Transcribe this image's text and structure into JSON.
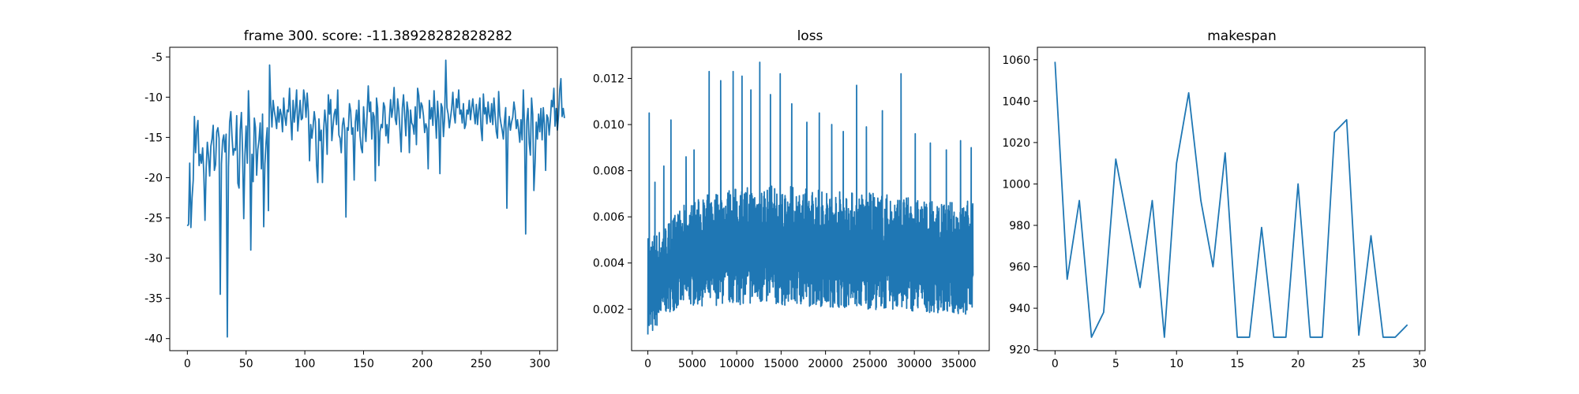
{
  "figure": {
    "background": "#ffffff",
    "line_color": "#1f77b4",
    "axes_color": "#000000"
  },
  "chart_data": [
    {
      "type": "line",
      "title": "frame 300. score: -11.38928282828282",
      "xlabel": "",
      "ylabel": "",
      "xlim": [
        -15,
        315
      ],
      "ylim": [
        -41.5,
        -3.8
      ],
      "xticks": [
        0,
        50,
        100,
        150,
        200,
        250,
        300
      ],
      "yticks": [
        -40,
        -35,
        -30,
        -25,
        -20,
        -15,
        -10,
        -5
      ],
      "grid": false,
      "series": [
        {
          "x_start": 0,
          "x_step": 1,
          "values": [
            -26,
            -25.8,
            -18.2,
            -26.2,
            -22.5,
            -20.3,
            -12.4,
            -16.9,
            -14.1,
            -12.9,
            -18.5,
            -17.1,
            -18.2,
            -16.3,
            -19.4,
            -25.3,
            -18.9,
            -15.6,
            -17.3,
            -19.8,
            -16.1,
            -15.2,
            -13.5,
            -19.1,
            -18.4,
            -14.3,
            -13.8,
            -15.1,
            -34.5,
            -18.3,
            -15.4,
            -14.7,
            -16.8,
            -14.6,
            -39.8,
            -18.7,
            -13.1,
            -11.8,
            -14.9,
            -17.2,
            -16.4,
            -16.6,
            -12.3,
            -20.7,
            -21.3,
            -14.1,
            -11.9,
            -16.8,
            -25.1,
            -17.3,
            -13.6,
            -18.2,
            -9.2,
            -13.8,
            -29,
            -17.1,
            -20.5,
            -12.6,
            -13.8,
            -19.7,
            -16.5,
            -15.3,
            -13.2,
            -18.9,
            -12.1,
            -26.1,
            -18.3,
            -15.6,
            -13.8,
            -24.1,
            -6,
            -10.9,
            -13.7,
            -10.4,
            -11.7,
            -12.6,
            -13.9,
            -11.2,
            -13.1,
            -11.5,
            -12.2,
            -14.3,
            -10.1,
            -12.4,
            -13.5,
            -11.6,
            -11.8,
            -8.9,
            -12.7,
            -15.3,
            -10.4,
            -13.1,
            -11.5,
            -9.1,
            -14.2,
            -12.3,
            -10.4,
            -12.8,
            -12.6,
            -9.1,
            -10.2,
            -12.5,
            -9.5,
            -11.8,
            -17.9,
            -13.4,
            -15.1,
            -13.7,
            -11.8,
            -13.1,
            -18.4,
            -20.6,
            -12.7,
            -15.4,
            -14.1,
            -20.6,
            -14.2,
            -11.6,
            -13.3,
            -17.1,
            -9.7,
            -12.1,
            -10.3,
            -15.4,
            -13.6,
            -12.1,
            -11.5,
            -13.4,
            -9.1,
            -14.7,
            -15.1,
            -16.9,
            -13.5,
            -12.6,
            -14.1,
            -24.9,
            -13.8,
            -14.1,
            -10.8,
            -11.7,
            -14.6,
            -13.8,
            -20.3,
            -13.1,
            -11.6,
            -14.2,
            -10.4,
            -14.8,
            -16.3,
            -16.9,
            -11.2,
            -13.6,
            -15.5,
            -12.1,
            -8.6,
            -11.8,
            -10.6,
            -15.2,
            -11.9,
            -12.4,
            -20.4,
            -10.1,
            -11.4,
            -18.5,
            -14.3,
            -13.4,
            -13.8,
            -10.7,
            -11.2,
            -14.8,
            -13.4,
            -15.7,
            -12.6,
            -10.3,
            -12.5,
            -11.3,
            -8.8,
            -12.7,
            -13.4,
            -10.2,
            -11.6,
            -14.1,
            -16.8,
            -11.4,
            -9.7,
            -12.2,
            -14.8,
            -10.6,
            -11.8,
            -16.9,
            -11.6,
            -13.2,
            -13.5,
            -14.6,
            -11.2,
            -15.9,
            -8.9,
            -9.8,
            -12.6,
            -10.7,
            -11.1,
            -12.3,
            -14.4,
            -13.3,
            -13.9,
            -18.9,
            -10.4,
            -12.7,
            -11.3,
            -13.5,
            -9.2,
            -12.2,
            -15.1,
            -10.5,
            -12.8,
            -19.5,
            -10.8,
            -11.3,
            -14.9,
            -12.6,
            -5.4,
            -11.3,
            -12.1,
            -13.8,
            -12.6,
            -11.4,
            -9.4,
            -12.1,
            -13.2,
            -10.2,
            -11.3,
            -9.1,
            -12.1,
            -11.6,
            -13.2,
            -10.8,
            -13.9,
            -13.4,
            -11.6,
            -12.1,
            -10.4,
            -12.8,
            -11.4,
            -10.2,
            -11.9,
            -13.3,
            -10.9,
            -13.4,
            -11.6,
            -10.1,
            -13.9,
            -15.4,
            -9.6,
            -12.1,
            -11.3,
            -13.3,
            -10.6,
            -12.2,
            -13.1,
            -10.8,
            -13.4,
            -10.1,
            -12.2,
            -14.3,
            -15.1,
            -9.3,
            -12.3,
            -13.3,
            -14.1,
            -15.2,
            -12.9,
            -11.3,
            -23.8,
            -13.9,
            -12.4,
            -14.1,
            -13.1,
            -12.5,
            -10.6,
            -11.7,
            -13.9,
            -12.8,
            -14.1,
            -15.6,
            -12.8,
            -15.3,
            -9.1,
            -13.6,
            -27,
            -12.9,
            -11.4,
            -15.7,
            -17.2,
            -10.1,
            -12.1,
            -21.6,
            -18.2,
            -13.1,
            -15.2,
            -12.1,
            -14.3,
            -11.4,
            -15.3,
            -11.3,
            -13.4,
            -19.1,
            -12.2,
            -12.6,
            -14.7,
            -12.8,
            -10.4,
            -11.2,
            -8.9,
            -13.6,
            -11.4,
            -14.1,
            -12.2,
            -9.1,
            -7.7,
            -12.4,
            -11.4,
            -12.6
          ]
        }
      ]
    },
    {
      "type": "line",
      "title": "loss",
      "xlabel": "",
      "ylabel": "",
      "xlim": [
        -1830,
        38430
      ],
      "ylim": [
        0.0002,
        0.01335
      ],
      "xticks": [
        0,
        5000,
        10000,
        15000,
        20000,
        25000,
        30000,
        35000
      ],
      "yticks": [
        0.002,
        0.004,
        0.006,
        0.008,
        0.01,
        0.012
      ],
      "ytick_labels": [
        "0.002",
        "0.004",
        "0.006",
        "0.008",
        "0.010",
        "0.012"
      ],
      "grid": false,
      "series": [
        {
          "x_start": 0,
          "x_end": 36600,
          "points_estimated": 1500,
          "envelope_low": [
            [
              0,
              0.0009
            ],
            [
              250,
              0.0007
            ],
            [
              1000,
              0.0012
            ],
            [
              2000,
              0.0018
            ],
            [
              4000,
              0.0021
            ],
            [
              10000,
              0.0022
            ],
            [
              20000,
              0.0021
            ],
            [
              30000,
              0.0019
            ],
            [
              36600,
              0.0017
            ]
          ],
          "envelope_high": [
            [
              0,
              0.0052
            ],
            [
              1500,
              0.0055
            ],
            [
              4000,
              0.0065
            ],
            [
              8000,
              0.0072
            ],
            [
              13000,
              0.0074
            ],
            [
              20000,
              0.0072
            ],
            [
              27000,
              0.007
            ],
            [
              33000,
              0.0066
            ],
            [
              36600,
              0.0068
            ]
          ],
          "spikes": [
            [
              150,
              0.0105
            ],
            [
              800,
              0.0075
            ],
            [
              1800,
              0.0082
            ],
            [
              2600,
              0.0102
            ],
            [
              4300,
              0.0086
            ],
            [
              5200,
              0.0089
            ],
            [
              6900,
              0.0123
            ],
            [
              8200,
              0.0119
            ],
            [
              9600,
              0.0123
            ],
            [
              10600,
              0.0121
            ],
            [
              11600,
              0.0115
            ],
            [
              12600,
              0.0127
            ],
            [
              13800,
              0.0113
            ],
            [
              14900,
              0.0122
            ],
            [
              16200,
              0.0109
            ],
            [
              17900,
              0.0101
            ],
            [
              19300,
              0.0105
            ],
            [
              20700,
              0.01
            ],
            [
              22000,
              0.0097
            ],
            [
              23500,
              0.0117
            ],
            [
              24600,
              0.0099
            ],
            [
              26400,
              0.0106
            ],
            [
              28500,
              0.0122
            ],
            [
              30100,
              0.0096
            ],
            [
              31800,
              0.0092
            ],
            [
              33600,
              0.0089
            ],
            [
              35200,
              0.0093
            ],
            [
              36400,
              0.009
            ]
          ]
        }
      ]
    },
    {
      "type": "line",
      "title": "makespan",
      "xlabel": "",
      "ylabel": "",
      "xlim": [
        -1.45,
        30.45
      ],
      "ylim": [
        919.5,
        1066
      ],
      "xticks": [
        0,
        5,
        10,
        15,
        20,
        25,
        30
      ],
      "yticks": [
        920,
        940,
        960,
        980,
        1000,
        1020,
        1040,
        1060
      ],
      "grid": false,
      "series": [
        {
          "x": [
            0,
            1,
            2,
            3,
            4,
            5,
            6,
            7,
            8,
            9,
            10,
            11,
            12,
            13,
            14,
            15,
            16,
            17,
            18,
            19,
            20,
            21,
            22,
            23,
            24,
            25,
            26,
            27,
            28,
            29
          ],
          "values": [
            1059,
            954,
            992,
            926,
            938,
            1012,
            981,
            950,
            992,
            926,
            1010,
            1044,
            992,
            960,
            1015,
            926,
            926,
            979,
            926,
            926,
            1000,
            926,
            926,
            1025,
            1031,
            927,
            975,
            926,
            926,
            932
          ]
        }
      ]
    }
  ]
}
